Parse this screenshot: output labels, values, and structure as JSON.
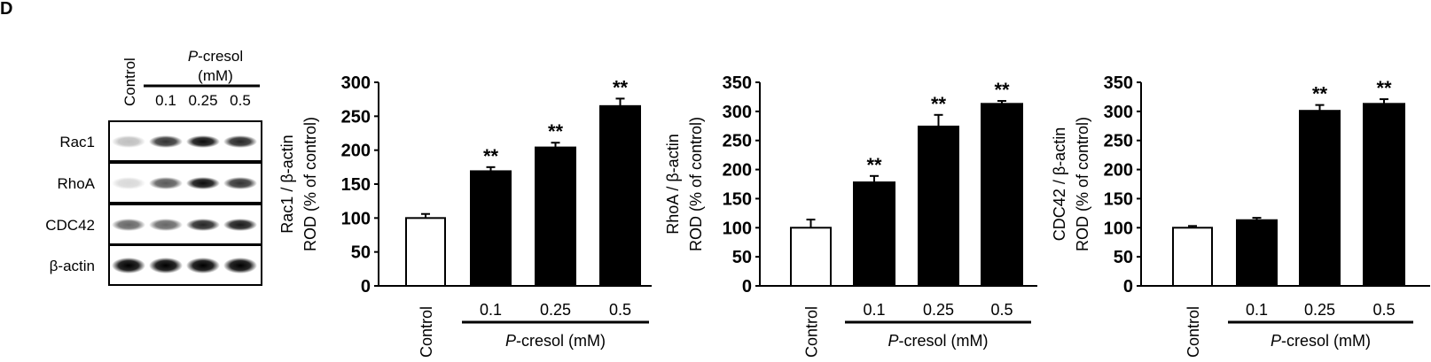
{
  "panel_label": "D",
  "western_blot": {
    "lane_header_control": "Control",
    "treatment_label": "P-cresol",
    "treatment_unit": "(mM)",
    "doses": [
      "0.1",
      "0.25",
      "0.5"
    ],
    "rows": [
      {
        "label": "Rac1",
        "band_intensity": [
          0.25,
          0.8,
          0.95,
          0.85
        ]
      },
      {
        "label": "RhoA",
        "band_intensity": [
          0.15,
          0.65,
          0.95,
          0.8
        ]
      },
      {
        "label": "CDC42",
        "band_intensity": [
          0.6,
          0.6,
          0.85,
          0.9
        ]
      },
      {
        "label": "β-actin",
        "band_intensity": [
          1.0,
          1.0,
          1.0,
          1.0
        ]
      }
    ]
  },
  "chart_data": [
    {
      "type": "bar",
      "categories": [
        "Control",
        "0.1",
        "0.25",
        "0.5"
      ],
      "values": [
        100,
        169,
        204,
        265
      ],
      "errors": [
        6,
        6,
        7,
        11
      ],
      "significance": [
        "",
        "**",
        "**",
        "**"
      ],
      "fill": [
        "#ffffff",
        "#000000",
        "#000000",
        "#000000"
      ],
      "ylabel_line1": "Rac1 / β-actin",
      "ylabel_line2": "ROD (% of control)",
      "xlabel": "P-cresol (mM)",
      "ylim": [
        0,
        300
      ],
      "yticks": [
        0,
        50,
        100,
        150,
        200,
        250,
        300
      ]
    },
    {
      "type": "bar",
      "categories": [
        "Control",
        "0.1",
        "0.25",
        "0.5"
      ],
      "values": [
        100,
        178,
        274,
        313
      ],
      "errors": [
        14,
        11,
        20,
        5
      ],
      "significance": [
        "",
        "**",
        "**",
        "**"
      ],
      "fill": [
        "#ffffff",
        "#000000",
        "#000000",
        "#000000"
      ],
      "ylabel_line1": "RhoA / β-actin",
      "ylabel_line2": "ROD (% of control)",
      "xlabel": "P-cresol (mM)",
      "ylim": [
        0,
        350
      ],
      "yticks": [
        0,
        50,
        100,
        150,
        200,
        250,
        300,
        350
      ]
    },
    {
      "type": "bar",
      "categories": [
        "Control",
        "0.1",
        "0.25",
        "0.5"
      ],
      "values": [
        100,
        113,
        301,
        313
      ],
      "errors": [
        3,
        4,
        10,
        8
      ],
      "significance": [
        "",
        "",
        "**",
        "**"
      ],
      "fill": [
        "#ffffff",
        "#000000",
        "#000000",
        "#000000"
      ],
      "ylabel_line1": "CDC42 / β-actin",
      "ylabel_line2": "ROD (% of control)",
      "xlabel": "P-cresol (mM)",
      "ylim": [
        0,
        350
      ],
      "yticks": [
        0,
        50,
        100,
        150,
        200,
        250,
        300,
        350
      ]
    }
  ]
}
